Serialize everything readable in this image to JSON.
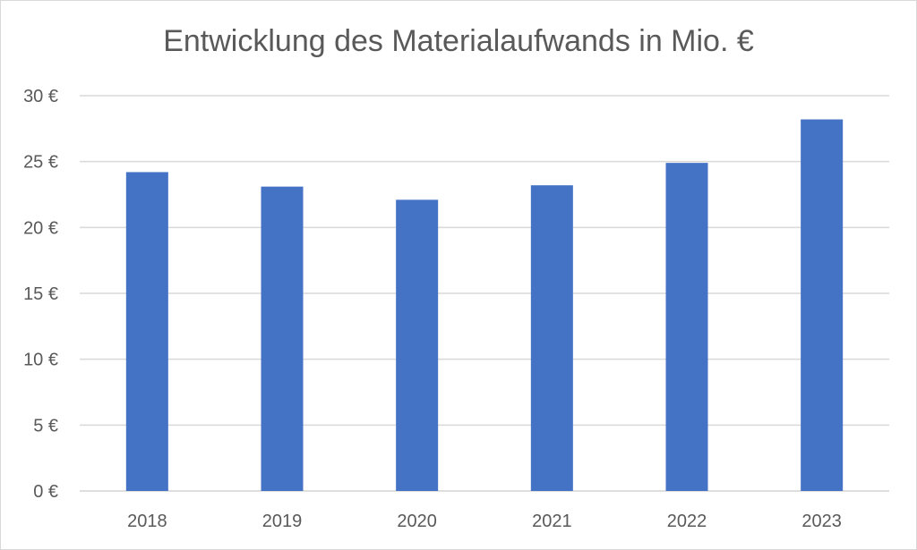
{
  "chart_data": {
    "type": "bar",
    "title": "Entwicklung des Materialaufwands in Mio. €",
    "xlabel": "",
    "ylabel": "",
    "categories": [
      "2018",
      "2019",
      "2020",
      "2021",
      "2022",
      "2023"
    ],
    "values": [
      24.2,
      23.1,
      22.1,
      23.2,
      24.9,
      28.2
    ],
    "ylim": [
      0,
      30
    ],
    "y_ticks": [
      0,
      5,
      10,
      15,
      20,
      25,
      30
    ],
    "y_tick_labels": [
      "0 €",
      "5 €",
      "10 €",
      "15 €",
      "20 €",
      "25 €",
      "30 €"
    ],
    "grid": true,
    "legend": "none",
    "colors": {
      "bar": "#4472c4",
      "grid": "#d9d9d9",
      "text": "#595959"
    }
  }
}
